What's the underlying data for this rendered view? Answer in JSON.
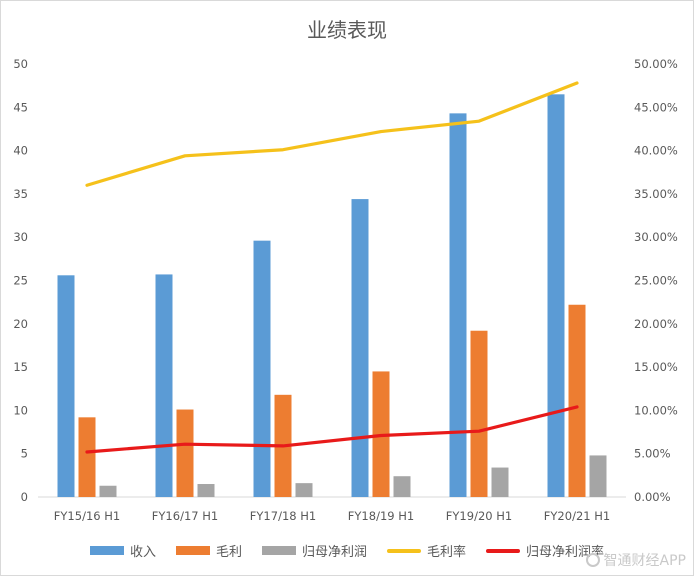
{
  "chart_data": {
    "type": "bar",
    "title": "业绩表现",
    "categories": [
      "FY15/16 H1",
      "FY16/17 H1",
      "FY17/18 H1",
      "FY18/19 H1",
      "FY19/20 H1",
      "FY20/21 H1"
    ],
    "series": [
      {
        "name": "收入",
        "kind": "bar",
        "axis": "left",
        "color": "#5b9bd5",
        "values": [
          25.6,
          25.7,
          29.6,
          34.4,
          44.3,
          46.5
        ]
      },
      {
        "name": "毛利",
        "kind": "bar",
        "axis": "left",
        "color": "#ed7d31",
        "values": [
          9.2,
          10.1,
          11.8,
          14.5,
          19.2,
          22.2
        ]
      },
      {
        "name": "归母净利润",
        "kind": "bar",
        "axis": "left",
        "color": "#a5a5a5",
        "values": [
          1.3,
          1.5,
          1.6,
          2.4,
          3.4,
          4.8
        ]
      },
      {
        "name": "毛利率",
        "kind": "line",
        "axis": "right",
        "color": "#f5c11b",
        "values": [
          0.36,
          0.394,
          0.401,
          0.422,
          0.434,
          0.478
        ]
      },
      {
        "name": "归母净利润率",
        "kind": "line",
        "axis": "right",
        "color": "#e81a1a",
        "values": [
          0.052,
          0.061,
          0.059,
          0.071,
          0.076,
          0.104
        ]
      }
    ],
    "y_left": {
      "min": 0,
      "max": 50,
      "ticks": [
        "0",
        "5",
        "10",
        "15",
        "20",
        "25",
        "30",
        "35",
        "40",
        "45",
        "50"
      ]
    },
    "y_right": {
      "min": 0,
      "max": 0.5,
      "ticks": [
        "0.00%",
        "5.00%",
        "10.00%",
        "15.00%",
        "20.00%",
        "25.00%",
        "30.00%",
        "35.00%",
        "40.00%",
        "45.00%",
        "50.00%"
      ]
    },
    "legend_position": "bottom",
    "grid": false
  },
  "watermark": "智通财经APP"
}
